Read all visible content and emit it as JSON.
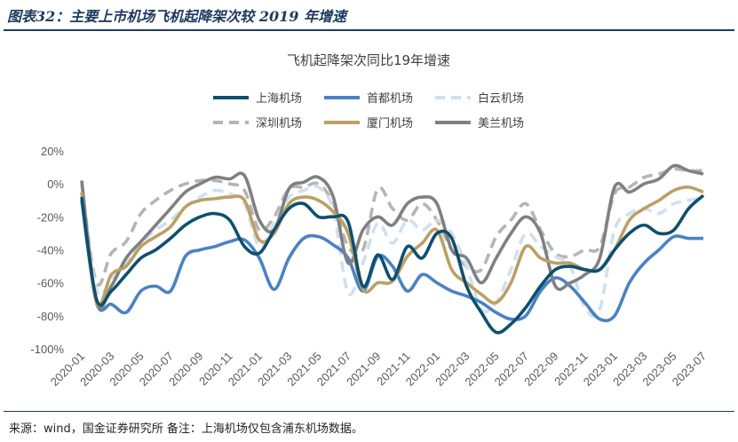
{
  "figure": {
    "title": "图表32：主要上市机场飞机起降架次较 2019 年增速",
    "source_note": "来源：wind，国金证券研究所   备注：上海机场仅包含浦东机场数据。"
  },
  "chart_data": {
    "type": "line",
    "title": "飞机起降架次同比19年增速",
    "xlabel": "",
    "ylabel": "",
    "ylim": [
      -100,
      20
    ],
    "yticks": [
      20,
      0,
      -20,
      -40,
      -60,
      -80,
      -100
    ],
    "ytick_labels": [
      "20%",
      "0%",
      "-20%",
      "-40%",
      "-60%",
      "-80%",
      "-100%"
    ],
    "xtick_labels": [
      "2020-01",
      "2020-03",
      "2020-05",
      "2020-07",
      "2020-09",
      "2020-11",
      "2021-01",
      "2021-03",
      "2021-05",
      "2021-07",
      "2021-09",
      "2021-11",
      "2022-01",
      "2022-03",
      "2022-05",
      "2022-07",
      "2022-09",
      "2022-11",
      "2023-01",
      "2023-03",
      "2023-05",
      "2023-07"
    ],
    "grid": false,
    "legend_position": "top",
    "x": [
      "2020-01",
      "2020-02",
      "2020-03",
      "2020-04",
      "2020-05",
      "2020-06",
      "2020-07",
      "2020-08",
      "2020-09",
      "2020-10",
      "2020-11",
      "2020-12",
      "2021-01",
      "2021-02",
      "2021-03",
      "2021-04",
      "2021-05",
      "2021-06",
      "2021-07",
      "2021-08",
      "2021-09",
      "2021-10",
      "2021-11",
      "2021-12",
      "2022-01",
      "2022-02",
      "2022-03",
      "2022-04",
      "2022-05",
      "2022-06",
      "2022-07",
      "2022-08",
      "2022-09",
      "2022-10",
      "2022-11",
      "2022-12",
      "2023-01",
      "2023-02",
      "2023-03",
      "2023-04",
      "2023-05",
      "2023-06",
      "2023-07"
    ],
    "series": [
      {
        "name": "上海机场",
        "color": "#0e4f6e",
        "dash": "solid",
        "values": [
          -8,
          -70,
          -65,
          -55,
          -45,
          -40,
          -33,
          -25,
          -20,
          -18,
          -22,
          -38,
          -42,
          -28,
          -15,
          -12,
          -20,
          -20,
          -23,
          -62,
          -43,
          -58,
          -38,
          -45,
          -30,
          -33,
          -62,
          -78,
          -90,
          -85,
          -75,
          -62,
          -52,
          -50,
          -52,
          -52,
          -40,
          -30,
          -25,
          -30,
          -28,
          -15,
          -7
        ]
      },
      {
        "name": "首都机场",
        "color": "#4a82c3",
        "dash": "solid",
        "values": [
          -10,
          -72,
          -73,
          -78,
          -65,
          -62,
          -65,
          -44,
          -40,
          -38,
          -35,
          -34,
          -45,
          -64,
          -45,
          -33,
          -32,
          -37,
          -45,
          -65,
          -44,
          -50,
          -65,
          -55,
          -60,
          -65,
          -68,
          -72,
          -78,
          -82,
          -80,
          -65,
          -57,
          -62,
          -72,
          -82,
          -80,
          -60,
          -48,
          -40,
          -32,
          -33,
          -33
        ]
      },
      {
        "name": "白云机场",
        "color": "#cfe0f0",
        "dash": "dashed",
        "values": [
          0,
          -64,
          -58,
          -48,
          -36,
          -28,
          -22,
          -14,
          -8,
          -4,
          -6,
          -12,
          -38,
          -24,
          -8,
          -4,
          -2,
          -16,
          -66,
          -48,
          -24,
          -36,
          -22,
          -28,
          -22,
          -30,
          -50,
          -76,
          -72,
          -52,
          -30,
          -38,
          -44,
          -50,
          -75,
          -76,
          -28,
          -18,
          -15,
          -18,
          -12,
          -10,
          -8
        ]
      },
      {
        "name": "深圳机场",
        "color": "#b5b5b5",
        "dash": "dashed",
        "values": [
          0,
          -60,
          -42,
          -35,
          -18,
          -10,
          -4,
          0,
          2,
          2,
          0,
          -4,
          -28,
          -20,
          -3,
          -2,
          0,
          -12,
          -38,
          -40,
          -3,
          -15,
          -22,
          -12,
          -22,
          -40,
          -50,
          -52,
          -32,
          -22,
          -12,
          -28,
          -42,
          -44,
          -40,
          -38,
          -6,
          -2,
          4,
          6,
          9,
          8,
          8
        ]
      },
      {
        "name": "厦门机场",
        "color": "#bba064",
        "dash": "solid",
        "values": [
          -5,
          -72,
          -55,
          -50,
          -38,
          -32,
          -26,
          -14,
          -10,
          -9,
          -8,
          -10,
          -34,
          -30,
          -12,
          -8,
          -10,
          -17,
          -30,
          -64,
          -60,
          -59,
          -44,
          -36,
          -28,
          -52,
          -60,
          -67,
          -72,
          -60,
          -38,
          -45,
          -48,
          -48,
          -52,
          -52,
          -40,
          -22,
          -15,
          -10,
          -4,
          -2,
          -5
        ]
      },
      {
        "name": "美兰机场",
        "color": "#808080",
        "dash": "solid",
        "values": [
          2,
          -72,
          -62,
          -45,
          -35,
          -25,
          -15,
          -5,
          0,
          4,
          3,
          5,
          -22,
          -28,
          -3,
          1,
          4,
          -8,
          -48,
          -28,
          -20,
          -25,
          -12,
          -8,
          -12,
          -40,
          -45,
          -60,
          -45,
          -30,
          -20,
          -30,
          -62,
          -60,
          -55,
          -45,
          -2,
          -5,
          0,
          3,
          11,
          8,
          6
        ]
      }
    ]
  }
}
